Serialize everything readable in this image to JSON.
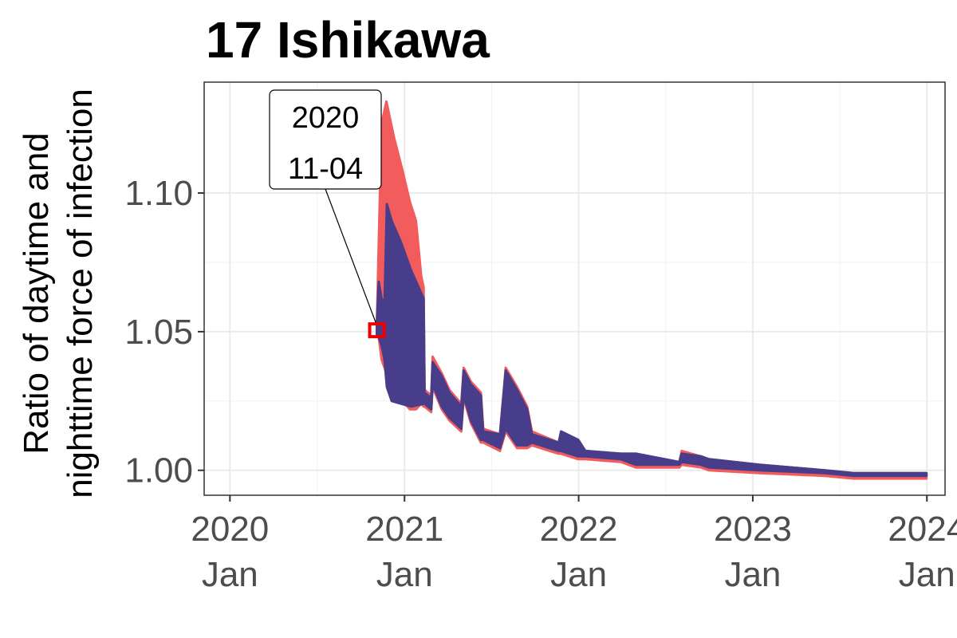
{
  "chart_data": {
    "type": "area",
    "title": "17 Ishikawa",
    "xlabel": "",
    "ylabel_lines": [
      "Ratio of daytime and",
      "nighttime force of infection"
    ],
    "xlim": [
      "2019-11-08",
      "2024-02-08"
    ],
    "ylim": [
      0.991,
      1.14
    ],
    "x_ticks": [
      {
        "date": "2020-01-01",
        "lines": [
          "2020",
          "Jan"
        ]
      },
      {
        "date": "2021-01-01",
        "lines": [
          "2021",
          "Jan"
        ]
      },
      {
        "date": "2022-01-01",
        "lines": [
          "2022",
          "Jan"
        ]
      },
      {
        "date": "2023-01-01",
        "lines": [
          "2023",
          "Jan"
        ]
      },
      {
        "date": "2024-01-01",
        "lines": [
          "2024",
          "Jan"
        ]
      }
    ],
    "y_ticks": [
      {
        "value": 1.0,
        "label": "1.00"
      },
      {
        "value": 1.05,
        "label": "1.05"
      },
      {
        "value": 1.1,
        "label": "1.10"
      }
    ],
    "grid": true,
    "colors": {
      "upper_band": "#f25c5c",
      "lower_band": "#483d8b",
      "marker": "#ee0000"
    },
    "series": [
      {
        "color": "#f25c5c",
        "points": [
          [
            "2020-11-04",
            1.052,
            1.049
          ],
          [
            "2020-11-08",
            1.082,
            1.048
          ],
          [
            "2020-11-14",
            1.125,
            1.04
          ],
          [
            "2020-11-24",
            1.133,
            1.035
          ],
          [
            "2020-12-10",
            1.12,
            1.028
          ],
          [
            "2020-12-28",
            1.108,
            1.025
          ],
          [
            "2021-01-12",
            1.097,
            1.022
          ],
          [
            "2021-01-25",
            1.09,
            1.022
          ],
          [
            "2021-02-05",
            1.07,
            1.024
          ],
          [
            "2021-02-10",
            1.066,
            1.023
          ],
          [
            "2021-02-12",
            1.029,
            1.023
          ],
          [
            "2021-02-26",
            1.027,
            1.021
          ],
          [
            "2021-03-01",
            1.041,
            1.03
          ],
          [
            "2021-03-20",
            1.035,
            1.022
          ],
          [
            "2021-04-05",
            1.029,
            1.018
          ],
          [
            "2021-04-30",
            1.024,
            1.014
          ],
          [
            "2021-05-05",
            1.037,
            1.026
          ],
          [
            "2021-05-20",
            1.032,
            1.017
          ],
          [
            "2021-06-10",
            1.028,
            1.01
          ],
          [
            "2021-06-15",
            1.015,
            1.01
          ],
          [
            "2021-07-20",
            1.013,
            1.007
          ],
          [
            "2021-08-01",
            1.037,
            1.014
          ],
          [
            "2021-08-25",
            1.03,
            1.008
          ],
          [
            "2021-09-15",
            1.023,
            1.008
          ],
          [
            "2021-09-25",
            1.014,
            1.009
          ],
          [
            "2021-11-20",
            1.01,
            1.006
          ],
          [
            "2021-11-25",
            1.013,
            1.006
          ],
          [
            "2021-12-31",
            1.011,
            1.004
          ],
          [
            "2022-01-15",
            1.007,
            1.004
          ],
          [
            "2022-03-31",
            1.006,
            1.003
          ],
          [
            "2022-05-01",
            1.006,
            1.001
          ],
          [
            "2022-07-31",
            1.003,
            1.001
          ],
          [
            "2022-08-05",
            1.007,
            1.002
          ],
          [
            "2022-09-15",
            1.005,
            1.001
          ],
          [
            "2022-10-01",
            1.004,
            1.0
          ],
          [
            "2023-01-15",
            1.002,
            0.999
          ],
          [
            "2023-06-01",
            1.0,
            0.998
          ],
          [
            "2023-08-01",
            0.999,
            0.997
          ],
          [
            "2023-12-31",
            0.999,
            0.997
          ]
        ]
      },
      {
        "color": "#483d8b",
        "points": [
          [
            "2020-11-04",
            1.053,
            1.049
          ],
          [
            "2020-11-08",
            1.068,
            1.048
          ],
          [
            "2020-11-14",
            1.062,
            1.045
          ],
          [
            "2020-11-20",
            1.06,
            1.04
          ],
          [
            "2020-11-25",
            1.096,
            1.03
          ],
          [
            "2020-12-05",
            1.09,
            1.025
          ],
          [
            "2020-12-25",
            1.082,
            1.024
          ],
          [
            "2021-01-15",
            1.072,
            1.023
          ],
          [
            "2021-02-10",
            1.062,
            1.024
          ],
          [
            "2021-02-12",
            1.028,
            1.024
          ],
          [
            "2021-02-26",
            1.026,
            1.022
          ],
          [
            "2021-03-01",
            1.039,
            1.031
          ],
          [
            "2021-03-20",
            1.034,
            1.023
          ],
          [
            "2021-04-05",
            1.028,
            1.019
          ],
          [
            "2021-04-30",
            1.023,
            1.015
          ],
          [
            "2021-05-05",
            1.036,
            1.027
          ],
          [
            "2021-05-20",
            1.031,
            1.018
          ],
          [
            "2021-06-10",
            1.027,
            1.011
          ],
          [
            "2021-06-15",
            1.014,
            1.011
          ],
          [
            "2021-07-20",
            1.013,
            1.008
          ],
          [
            "2021-08-01",
            1.036,
            1.015
          ],
          [
            "2021-08-25",
            1.029,
            1.009
          ],
          [
            "2021-09-15",
            1.022,
            1.009
          ],
          [
            "2021-09-25",
            1.013,
            1.01
          ],
          [
            "2021-11-20",
            1.01,
            1.007
          ],
          [
            "2021-11-25",
            1.014,
            1.007
          ],
          [
            "2021-12-31",
            1.011,
            1.005
          ],
          [
            "2022-01-15",
            1.007,
            1.005
          ],
          [
            "2022-03-31",
            1.006,
            1.004
          ],
          [
            "2022-05-01",
            1.006,
            1.002
          ],
          [
            "2022-07-31",
            1.003,
            1.002
          ],
          [
            "2022-08-05",
            1.006,
            1.003
          ],
          [
            "2022-09-15",
            1.005,
            1.002
          ],
          [
            "2022-10-01",
            1.004,
            1.001
          ],
          [
            "2023-01-15",
            1.002,
            1.0
          ],
          [
            "2023-06-01",
            1.0,
            0.999
          ],
          [
            "2023-08-01",
            0.999,
            0.998
          ],
          [
            "2023-12-31",
            0.999,
            0.998
          ]
        ]
      }
    ],
    "annotation": {
      "date": "2020-11-04",
      "value": 1.0505,
      "lines": [
        "2020",
        "11-04"
      ]
    }
  }
}
